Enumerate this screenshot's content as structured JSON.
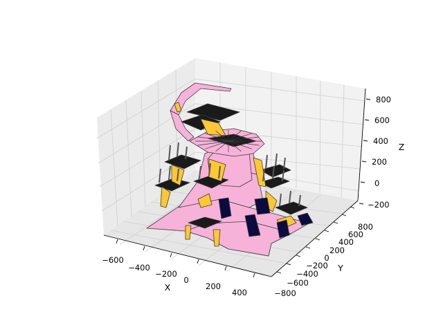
{
  "chart_data": {
    "type": "3d-surface",
    "title": "",
    "xlabel": "X",
    "ylabel": "Y",
    "zlabel": "Z",
    "x_ticks": [
      "−600",
      "−400",
      "−200",
      "0",
      "200",
      "400"
    ],
    "y_ticks": [
      "−800",
      "−600",
      "−400",
      "−200",
      "0",
      "200",
      "400",
      "600",
      "800"
    ],
    "z_ticks": [
      "−200",
      "0",
      "200",
      "400",
      "600",
      "800"
    ],
    "xlim": [
      -700,
      500
    ],
    "ylim": [
      -850,
      850
    ],
    "zlim": [
      -250,
      850
    ],
    "grid": true,
    "face_colors": {
      "body": "#f7b2d9",
      "accent": "#ffc832",
      "panel": "#1a1a1a",
      "shadow": "#0b0b40",
      "edge": "#3a3a3a",
      "pane": "#ebebeb"
    }
  }
}
